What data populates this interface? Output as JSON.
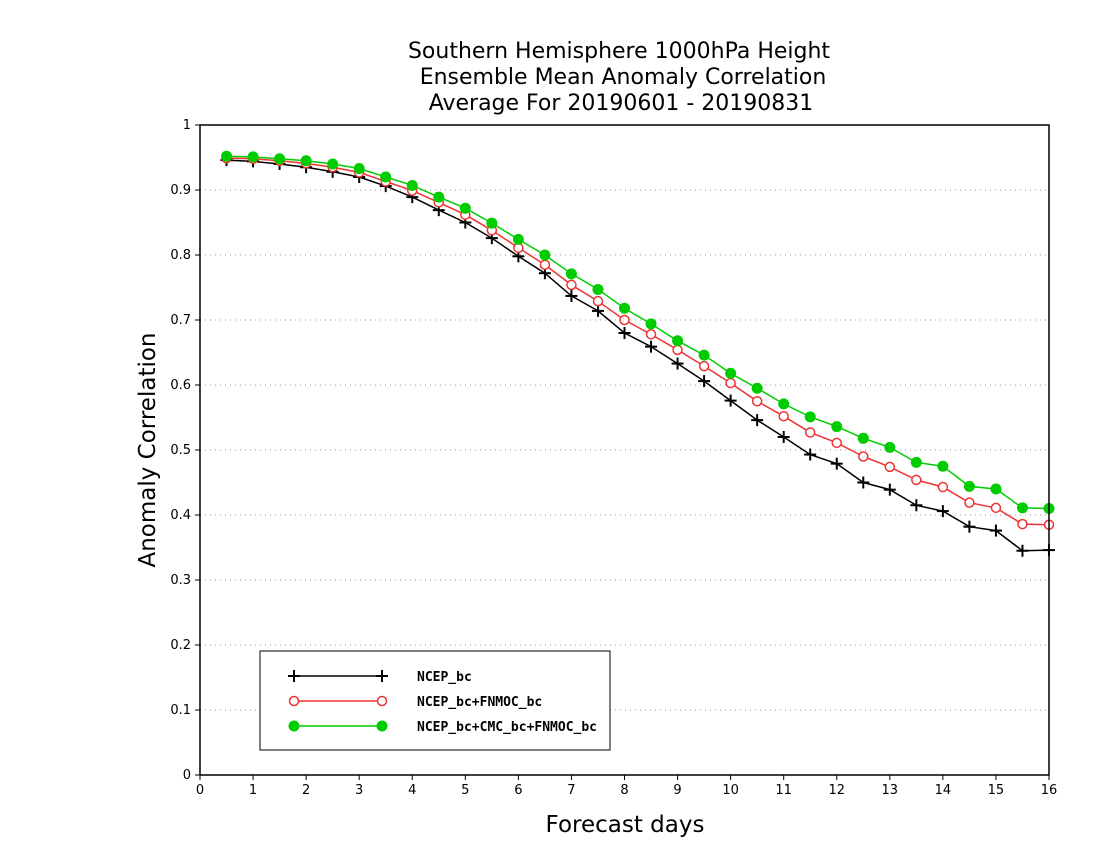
{
  "chart_data": {
    "type": "line",
    "title": [
      "Southern Hemisphere 1000hPa Height",
      "Ensemble Mean Anomaly Correlation",
      "Average For 20190601 - 20190831"
    ],
    "xlabel": "Forecast days",
    "ylabel": "Anomaly Correlation",
    "xlim": [
      0,
      16
    ],
    "ylim": [
      0,
      1
    ],
    "xticks": [
      0,
      1,
      2,
      3,
      4,
      5,
      6,
      7,
      8,
      9,
      10,
      11,
      12,
      13,
      14,
      15,
      16
    ],
    "yticks": [
      0,
      0.1,
      0.2,
      0.3,
      0.4,
      0.5,
      0.6,
      0.7,
      0.8,
      0.9,
      1
    ],
    "ytick_labels": [
      "0",
      "0.1",
      "0.2",
      "0.3",
      "0.4",
      "0.5",
      "0.6",
      "0.7",
      "0.8",
      "0.9",
      "1"
    ],
    "grid": "horizontal dotted",
    "legend_position": "bottom-left",
    "x": [
      0.5,
      1,
      1.5,
      2,
      2.5,
      3,
      3.5,
      4,
      4.5,
      5,
      5.5,
      6,
      6.5,
      7,
      7.5,
      8,
      8.5,
      9,
      9.5,
      10,
      10.5,
      11,
      11.5,
      12,
      12.5,
      13,
      13.5,
      14,
      14.5,
      15,
      15.5,
      16
    ],
    "series": [
      {
        "name": "NCEP_bc",
        "color": "#000000",
        "marker": "plus",
        "values": [
          0.946,
          0.944,
          0.94,
          0.935,
          0.928,
          0.92,
          0.906,
          0.889,
          0.869,
          0.85,
          0.826,
          0.798,
          0.772,
          0.737,
          0.714,
          0.68,
          0.659,
          0.633,
          0.606,
          0.576,
          0.546,
          0.52,
          0.493,
          0.479,
          0.45,
          0.439,
          0.415,
          0.406,
          0.382,
          0.376,
          0.345,
          0.346
        ]
      },
      {
        "name": "NCEP_bc+FNMOC_bc",
        "color": "#ee3333",
        "marker": "open-circle",
        "values": [
          0.949,
          0.948,
          0.945,
          0.941,
          0.935,
          0.927,
          0.913,
          0.899,
          0.881,
          0.862,
          0.838,
          0.811,
          0.785,
          0.754,
          0.729,
          0.7,
          0.678,
          0.654,
          0.629,
          0.603,
          0.575,
          0.552,
          0.527,
          0.511,
          0.49,
          0.474,
          0.454,
          0.443,
          0.419,
          0.411,
          0.386,
          0.385
        ]
      },
      {
        "name": "NCEP_bc+CMC_bc+FNMOC_bc",
        "color": "#00cc00",
        "marker": "filled-circle",
        "values": [
          0.952,
          0.951,
          0.948,
          0.945,
          0.94,
          0.933,
          0.92,
          0.907,
          0.889,
          0.872,
          0.849,
          0.824,
          0.8,
          0.771,
          0.747,
          0.718,
          0.694,
          0.668,
          0.646,
          0.618,
          0.595,
          0.571,
          0.551,
          0.536,
          0.518,
          0.504,
          0.481,
          0.475,
          0.444,
          0.44,
          0.411,
          0.41
        ]
      }
    ]
  }
}
